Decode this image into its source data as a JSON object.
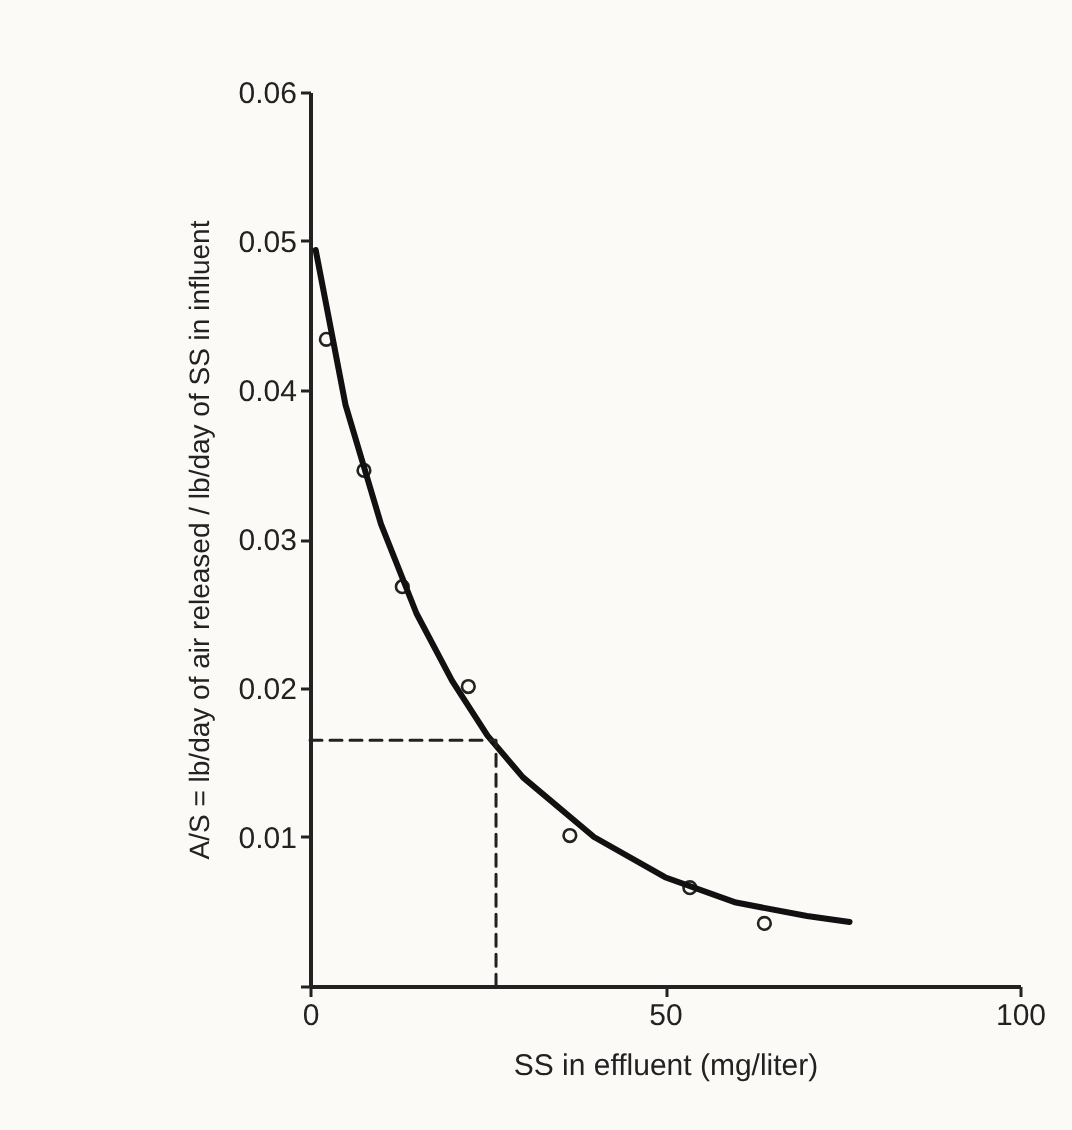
{
  "chart_data": {
    "type": "scatter",
    "xlabel": "SS in effluent (mg/liter)",
    "ylabel": "A/S = lb/day of air released / lb/day of SS in influent",
    "xlim": [
      0,
      100
    ],
    "xticks": [
      0,
      50,
      100
    ],
    "ylim": [
      0,
      0.06
    ],
    "yticks": [
      {
        "value": 0,
        "label": null
      },
      {
        "value": 0.01,
        "label": "0.01"
      },
      {
        "value": 0.02,
        "label": "0.02"
      },
      {
        "value": 0.03,
        "label": "0.03"
      },
      {
        "value": 0.04,
        "label": "0.04"
      },
      {
        "value": 0.05,
        "label": "0.05"
      },
      {
        "value": 0.06,
        "label": "0.06"
      }
    ],
    "grid": false,
    "series": [
      {
        "marker": "circle",
        "color": "#222222",
        "x": [
          2.3,
          7.6,
          13,
          22.3,
          36.6,
          53.5,
          64
        ],
        "values": [
          0.0434,
          0.0346,
          0.0268,
          0.0201,
          0.0101,
          0.0066,
          0.0042
        ]
      },
      {
        "type": "line",
        "marker": "none",
        "line_style": "solid",
        "color": "#111111",
        "x": [
          0.8,
          5,
          10,
          15,
          20,
          25,
          30,
          40,
          50,
          60,
          70,
          76
        ],
        "values": [
          0.0494,
          0.039,
          0.031,
          0.025,
          0.0205,
          0.0168,
          0.014,
          0.01,
          0.0073,
          0.0056,
          0.0047,
          0.0043
        ]
      },
      {
        "type": "line",
        "marker": "none",
        "line_style": "dashed",
        "color": "#222222",
        "x": [
          0,
          26.2,
          26.2
        ],
        "values": [
          0.0165,
          0.0165,
          0
        ]
      }
    ]
  }
}
